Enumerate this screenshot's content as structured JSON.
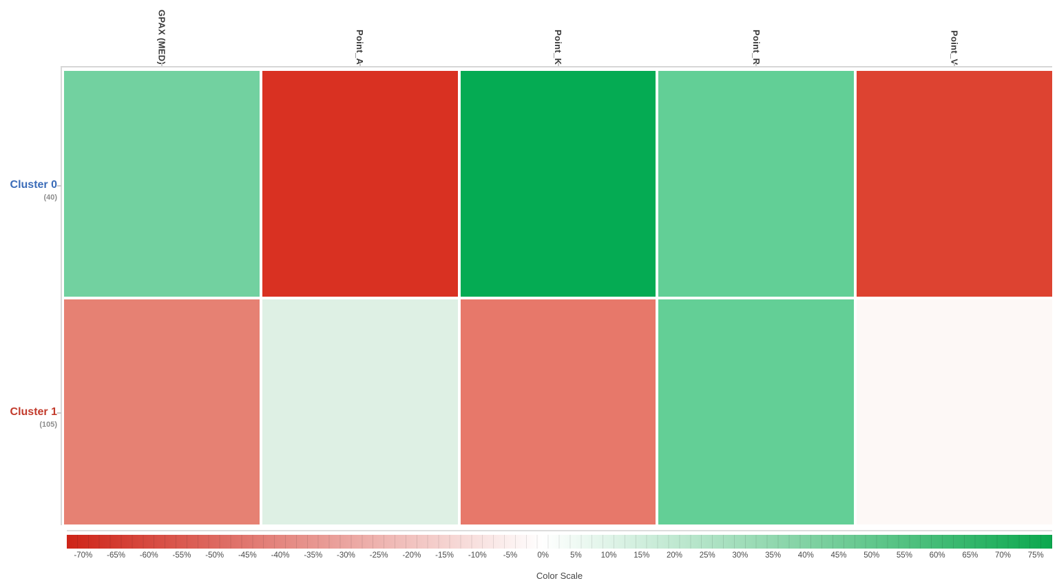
{
  "chart_data": {
    "type": "heatmap",
    "columns": [
      "GPAX (MED)",
      "Point_A",
      "Point_K",
      "Point_R",
      "Point_V"
    ],
    "rows": [
      {
        "label": "Cluster 0",
        "count": "(40)",
        "label_color": "#3b6cb8",
        "cell_colors": [
          "#72d1a0",
          "#d93122",
          "#05ab53",
          "#62cf96",
          "#dd4331"
        ],
        "values_approx_pct": [
          35,
          -65,
          75,
          40,
          -60
        ]
      },
      {
        "label": "Cluster 1",
        "count": "(105)",
        "label_color": "#c23a2b",
        "cell_colors": [
          "#e68173",
          "#def0e4",
          "#e7786a",
          "#63cf96",
          "#fdf8f6"
        ],
        "values_approx_pct": [
          -40,
          10,
          -45,
          40,
          -1
        ]
      }
    ],
    "colorbar": {
      "title": "Color Scale",
      "ticks": [
        "-70%",
        "-65%",
        "-60%",
        "-55%",
        "-50%",
        "-45%",
        "-40%",
        "-35%",
        "-30%",
        "-25%",
        "-20%",
        "-15%",
        "-10%",
        "-5%",
        "0%",
        "5%",
        "10%",
        "15%",
        "20%",
        "25%",
        "30%",
        "35%",
        "40%",
        "45%",
        "50%",
        "55%",
        "60%",
        "65%",
        "70%",
        "75%"
      ],
      "min_color": "#ce2418",
      "zero_color": "#ffffff",
      "max_color": "#0ca84e",
      "zero_position_pct": 48.3,
      "segments": 90
    },
    "grid_on": false,
    "legend_position": "bottom",
    "value_range_pct": [
      -72.5,
      77.5
    ]
  }
}
